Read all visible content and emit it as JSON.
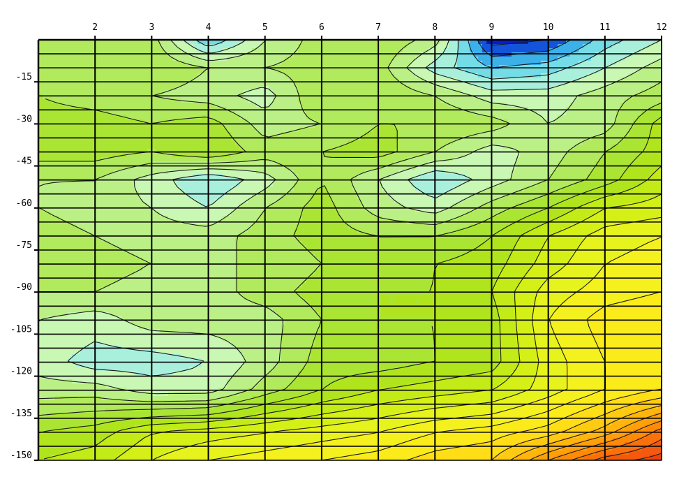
{
  "chart_data": {
    "type": "contour",
    "title": "",
    "xlabel": "",
    "ylabel": "",
    "x_ticks": [
      2,
      3,
      4,
      5,
      6,
      7,
      8,
      9,
      10,
      11,
      12
    ],
    "y_ticks": [
      -15,
      -30,
      -45,
      -60,
      -75,
      -90,
      -105,
      -120,
      -135,
      -150
    ],
    "xlim": [
      1,
      12
    ],
    "ylim": [
      -150,
      0
    ],
    "grid": true,
    "legend": "none",
    "colormap": [
      "#0a1ad0",
      "#1e8ee6",
      "#5ad2ec",
      "#a8f0dc",
      "#c8f8b4",
      "#b4ec70",
      "#a6e220",
      "#ccee14",
      "#f0f420",
      "#ffe81a",
      "#ffc010",
      "#ff8a08",
      "#f04010"
    ],
    "color_stops": [
      -1.6,
      -1.2,
      -0.8,
      -0.2,
      0.2,
      0.8,
      1.6,
      2.4,
      3.2,
      4.0,
      4.8,
      5.8,
      7.0
    ],
    "contour_step": 0.4,
    "note_values": "relative field values estimated from color bands",
    "field": [
      [
        0.8,
        1.0,
        -0.8,
        0.4,
        1.0,
        1.2,
        0.6,
        -1.8,
        -1.6,
        -0.6,
        0.0
      ],
      [
        1.2,
        1.2,
        0.8,
        0.8,
        1.0,
        1.0,
        -0.2,
        -0.8,
        -0.6,
        0.0,
        0.6
      ],
      [
        1.0,
        0.8,
        0.6,
        0.2,
        1.2,
        1.2,
        0.8,
        0.2,
        0.2,
        0.6,
        1.0
      ],
      [
        1.4,
        1.2,
        1.4,
        0.6,
        0.8,
        1.2,
        1.2,
        1.0,
        0.4,
        0.6,
        1.8
      ],
      [
        1.4,
        1.2,
        1.6,
        1.0,
        1.2,
        1.4,
        0.8,
        0.2,
        0.6,
        1.2,
        1.8
      ],
      [
        0.8,
        0.2,
        -0.4,
        0.2,
        1.2,
        0.4,
        -0.4,
        0.2,
        0.8,
        1.4,
        2.2
      ],
      [
        0.6,
        0.4,
        0.0,
        0.8,
        1.4,
        0.6,
        0.2,
        1.0,
        1.6,
        2.4,
        2.6
      ],
      [
        0.8,
        0.6,
        0.6,
        1.0,
        1.4,
        1.2,
        1.2,
        1.6,
        2.4,
        3.0,
        3.2
      ],
      [
        1.0,
        0.8,
        0.8,
        0.8,
        1.2,
        1.4,
        1.6,
        1.8,
        2.6,
        3.2,
        3.4
      ],
      [
        0.8,
        0.6,
        0.6,
        1.0,
        1.4,
        1.6,
        1.6,
        2.0,
        3.0,
        3.4,
        3.6
      ],
      [
        0.2,
        0.6,
        0.6,
        0.6,
        1.2,
        1.6,
        1.6,
        1.8,
        3.2,
        3.8,
        4.0
      ],
      [
        -0.2,
        -0.2,
        0.0,
        0.6,
        1.4,
        1.4,
        1.6,
        1.8,
        3.0,
        3.6,
        4.0
      ],
      [
        0.6,
        0.2,
        0.2,
        1.0,
        1.6,
        2.0,
        2.2,
        2.4,
        3.0,
        3.6,
        4.0
      ],
      [
        1.8,
        2.4,
        2.6,
        2.8,
        3.0,
        3.2,
        3.6,
        3.8,
        4.2,
        5.0,
        6.2
      ],
      [
        2.2,
        2.8,
        3.2,
        3.4,
        3.6,
        3.8,
        4.2,
        4.4,
        5.6,
        6.6,
        7.0
      ]
    ],
    "field_x": [
      2,
      3,
      4,
      5,
      6,
      7,
      8,
      9,
      10,
      11,
      12
    ],
    "field_y": [
      0,
      -10,
      -20,
      -30,
      -40,
      -50,
      -60,
      -70,
      -80,
      -90,
      -100,
      -115,
      -125,
      -140,
      -150
    ],
    "edge_column_left": [
      0.8,
      1.2,
      1.2,
      1.4,
      1.4,
      0.8,
      0.8,
      1.0,
      1.0,
      0.8,
      0.4,
      0.2,
      0.6,
      1.6,
      2.0
    ]
  }
}
